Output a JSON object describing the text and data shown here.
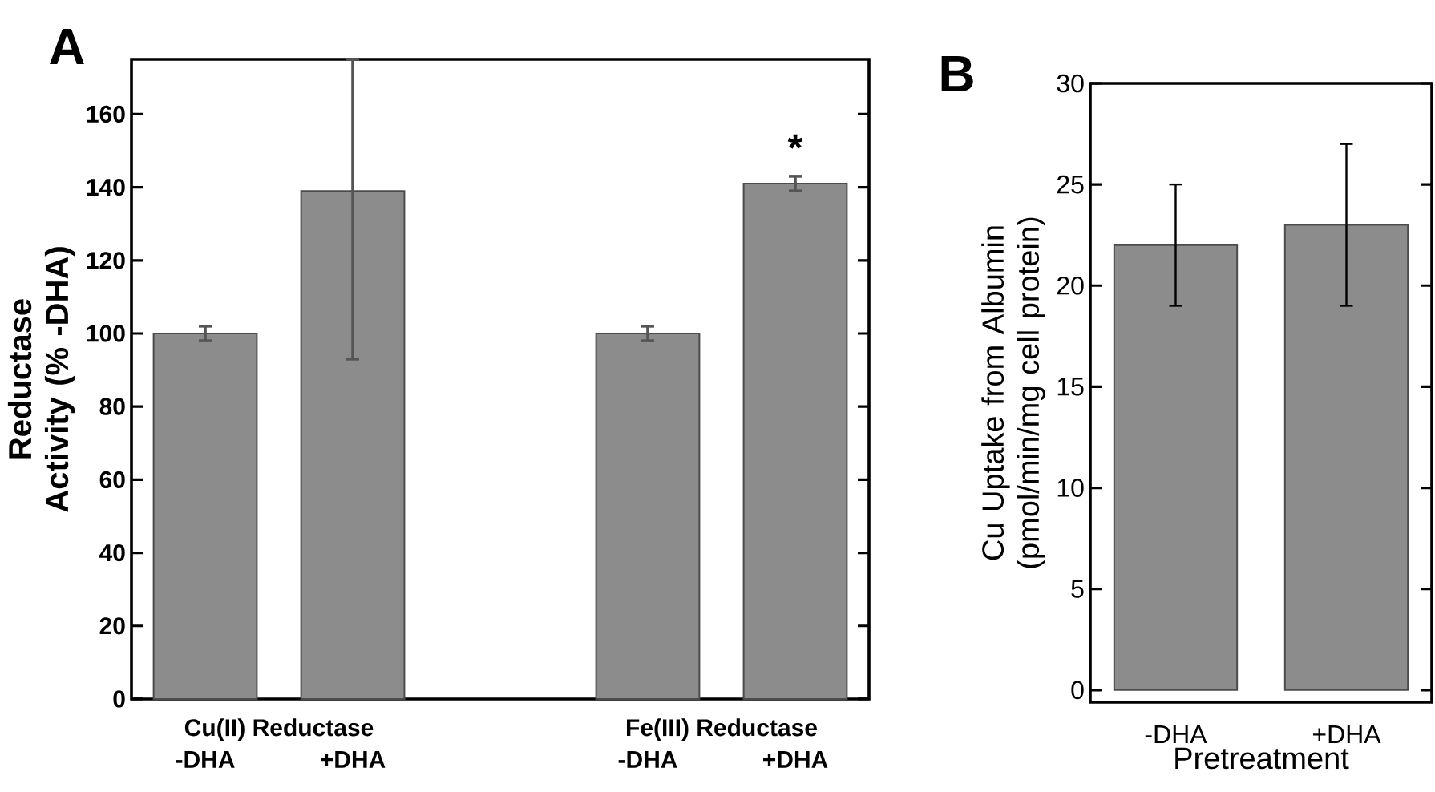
{
  "chart_data": [
    {
      "type": "bar",
      "title": "A",
      "ylabel": "Reductase Activity (% -DHA)",
      "categories": [
        "-DHA",
        "+DHA",
        null,
        "-DHA",
        "+DHA"
      ],
      "values": [
        100,
        139,
        null,
        100,
        141
      ],
      "errors": [
        2,
        [
          93,
          175
        ],
        null,
        2,
        2
      ],
      "color": "#8c8c8c",
      "ylim": [
        0,
        175
      ],
      "yticks": [
        0,
        20,
        40,
        60,
        80,
        100,
        120,
        140,
        160
      ],
      "annotations": [
        "Cu(II) Reductase",
        "Fe(III) Reductase",
        "*"
      ]
    },
    {
      "type": "bar",
      "title": "B",
      "ylabel": "Cu Uptake from Albumin (pmol/min/mg cell protein)",
      "xlabel": "Pretreatment",
      "categories": [
        "-DHA",
        "+DHA"
      ],
      "values": [
        22,
        23
      ],
      "errors": [
        [
          19,
          25
        ],
        [
          19,
          27
        ]
      ],
      "color": "#8c8c8c",
      "ylim": [
        -0.6,
        30
      ],
      "yticks": [
        0,
        5,
        10,
        15,
        20,
        25,
        30
      ]
    }
  ]
}
